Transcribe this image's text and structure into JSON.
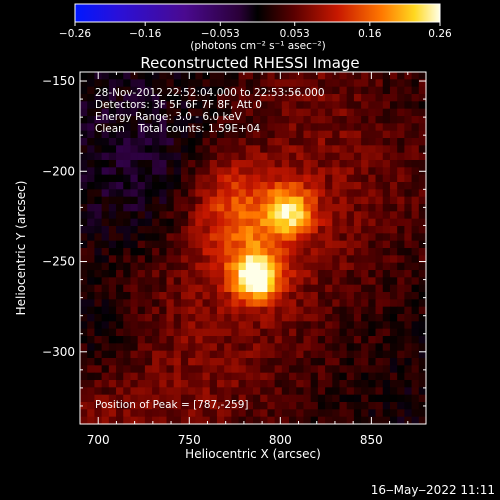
{
  "chart_data": {
    "type": "heatmap",
    "title": "Reconstructed RHESSI Image",
    "xlabel": "Heliocentric X (arcsec)",
    "ylabel": "Heliocentric Y (arcsec)",
    "xlim": [
      690,
      880
    ],
    "ylim": [
      -340,
      -145
    ],
    "x_ticks": [
      700,
      750,
      800,
      850
    ],
    "x_tick_labels": [
      "700",
      "750",
      "800",
      "850"
    ],
    "y_ticks": [
      -150,
      -200,
      -250,
      -300
    ],
    "y_tick_labels": [
      "−150",
      "−200",
      "−250",
      "−300"
    ],
    "colorbar": {
      "range": [
        -0.26,
        0.26
      ],
      "tick_values": [
        -0.26,
        -0.16,
        -0.053,
        0.053,
        0.16,
        0.26
      ],
      "tick_labels": [
        "−0.26",
        "−0.16",
        "−0.053",
        "0.053",
        "0.16",
        "0.26"
      ],
      "unit_label": "(photons cm⁻² s⁻¹ asec⁻²)"
    },
    "sources": [
      {
        "x": 787,
        "y": -259,
        "peak": 0.26
      },
      {
        "x": 806,
        "y": -222,
        "peak": 0.21
      }
    ],
    "annotations": [
      "28-Nov-2012 22:52:04.000 to 22:53:56.000",
      "Detectors: 3F 5F 6F 7F 8F, Att 0",
      "Energy Range: 3.0 - 6.0 keV",
      "Clean    Total counts: 1.59E+04"
    ],
    "peak_label": "Position of Peak = [787,-259]",
    "footer": "16‒May‒2022 11:11"
  }
}
